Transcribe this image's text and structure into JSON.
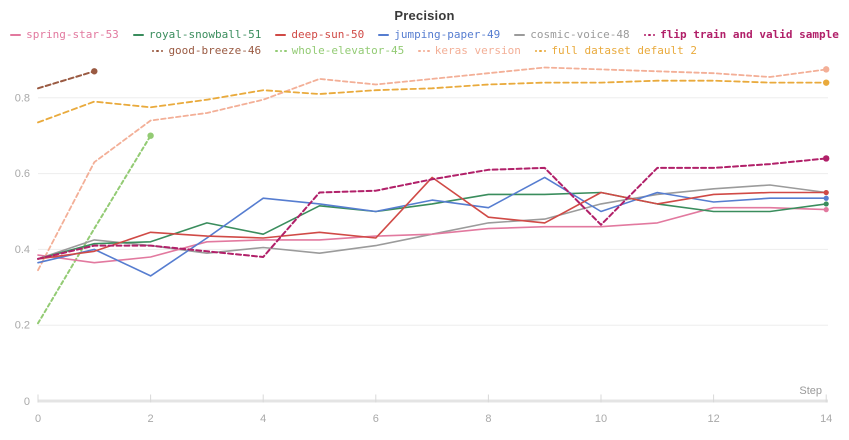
{
  "chart_data": {
    "type": "line",
    "title": "Precision",
    "xlabel": "Step",
    "x_range": [
      0,
      14
    ],
    "y_range_shown": [
      0,
      0.92
    ],
    "grid": "horizontal-only",
    "legend_position": "top",
    "x_ticks": [
      0,
      2,
      4,
      6,
      8,
      10,
      12,
      14
    ],
    "y_ticks": [
      {
        "v": 0,
        "label": "0"
      },
      {
        "v": 0.2,
        "label": "0.2"
      },
      {
        "v": 0.4,
        "label": "0.4"
      },
      {
        "v": 0.6,
        "label": "0.6"
      },
      {
        "v": 0.8,
        "label": "0.8"
      }
    ],
    "legend_rows": [
      [
        0,
        1,
        2,
        3,
        4,
        5
      ],
      [
        6,
        7,
        8,
        9
      ]
    ],
    "draw_order": [
      8,
      9,
      6,
      7,
      4,
      0,
      1,
      3,
      2,
      5
    ],
    "series": [
      {
        "name": "spring-star-53",
        "color": "#e2799f",
        "line_style": "solid",
        "width": 1.6,
        "x": [
          0,
          1,
          2,
          3,
          4,
          5,
          6,
          7,
          8,
          9,
          10,
          11,
          12,
          13,
          14
        ],
        "y": [
          0.385,
          0.365,
          0.38,
          0.42,
          0.425,
          0.425,
          0.435,
          0.44,
          0.455,
          0.46,
          0.46,
          0.47,
          0.51,
          0.51,
          0.505
        ]
      },
      {
        "name": "royal-snowball-51",
        "color": "#3a8d5d",
        "line_style": "solid",
        "width": 1.6,
        "x": [
          0,
          1,
          2,
          3,
          4,
          5,
          6,
          7,
          8,
          9,
          10,
          11,
          12,
          13,
          14
        ],
        "y": [
          0.375,
          0.415,
          0.42,
          0.47,
          0.44,
          0.515,
          0.5,
          0.52,
          0.545,
          0.545,
          0.55,
          0.52,
          0.5,
          0.5,
          0.52
        ]
      },
      {
        "name": "deep-sun-50",
        "color": "#d04a46",
        "line_style": "solid",
        "width": 1.6,
        "x": [
          0,
          1,
          2,
          3,
          4,
          5,
          6,
          7,
          8,
          9,
          10,
          11,
          12,
          13,
          14
        ],
        "y": [
          0.375,
          0.395,
          0.445,
          0.435,
          0.43,
          0.445,
          0.43,
          0.59,
          0.485,
          0.47,
          0.55,
          0.52,
          0.545,
          0.55,
          0.55
        ]
      },
      {
        "name": "jumping-paper-49",
        "color": "#567dd0",
        "line_style": "solid",
        "width": 1.6,
        "x": [
          0,
          1,
          2,
          3,
          4,
          5,
          6,
          7,
          8,
          9,
          10,
          11,
          12,
          13,
          14
        ],
        "y": [
          0.365,
          0.4,
          0.33,
          0.43,
          0.535,
          0.52,
          0.5,
          0.53,
          0.51,
          0.59,
          0.5,
          0.55,
          0.525,
          0.535,
          0.535
        ]
      },
      {
        "name": "cosmic-voice-48",
        "color": "#9b9b9b",
        "line_style": "solid",
        "width": 1.6,
        "x": [
          0,
          1,
          2,
          3,
          4,
          5,
          6,
          7,
          8,
          9,
          10,
          11,
          12,
          13,
          14
        ],
        "y": [
          0.375,
          0.425,
          0.41,
          0.39,
          0.405,
          0.39,
          0.41,
          0.44,
          0.47,
          0.48,
          0.52,
          0.545,
          0.56,
          0.57,
          0.55
        ]
      },
      {
        "name": "flip train and valid sample",
        "color": "#b12069",
        "line_style": "dashed",
        "dash": "5 3",
        "width": 2,
        "bold": true,
        "x": [
          0,
          1,
          2,
          3,
          4,
          5,
          6,
          7,
          8,
          9,
          10,
          11,
          12,
          13,
          14
        ],
        "y": [
          0.375,
          0.41,
          0.41,
          0.395,
          0.38,
          0.55,
          0.555,
          0.585,
          0.61,
          0.615,
          0.465,
          0.615,
          0.615,
          0.625,
          0.64
        ]
      },
      {
        "name": "good-breeze-46",
        "color": "#9a5a42",
        "line_style": "dashed",
        "dash": "5 3",
        "width": 2,
        "x": [
          0,
          1
        ],
        "y": [
          0.825,
          0.87
        ]
      },
      {
        "name": "whole-elevator-45",
        "color": "#93cb74",
        "line_style": "dashed",
        "dash": "3.5 3",
        "width": 2,
        "x": [
          0,
          1,
          2
        ],
        "y": [
          0.205,
          0.455,
          0.7
        ]
      },
      {
        "name": "keras version",
        "color": "#f3af97",
        "line_style": "dashed",
        "dash": "4.5 3",
        "width": 1.8,
        "x": [
          0,
          1,
          2,
          3,
          4,
          5,
          6,
          7,
          8,
          9,
          10,
          11,
          12,
          13,
          14
        ],
        "y": [
          0.345,
          0.63,
          0.74,
          0.76,
          0.795,
          0.85,
          0.835,
          0.85,
          0.865,
          0.88,
          0.875,
          0.87,
          0.865,
          0.855,
          0.875
        ]
      },
      {
        "name": "full dataset default 2",
        "color": "#e9aa3c",
        "line_style": "dashed",
        "dash": "5.5 3.5",
        "width": 1.8,
        "x": [
          0,
          1,
          2,
          3,
          4,
          5,
          6,
          7,
          8,
          9,
          10,
          11,
          12,
          13,
          14
        ],
        "y": [
          0.735,
          0.79,
          0.775,
          0.795,
          0.82,
          0.81,
          0.82,
          0.825,
          0.835,
          0.84,
          0.84,
          0.845,
          0.845,
          0.84,
          0.84
        ]
      }
    ]
  }
}
